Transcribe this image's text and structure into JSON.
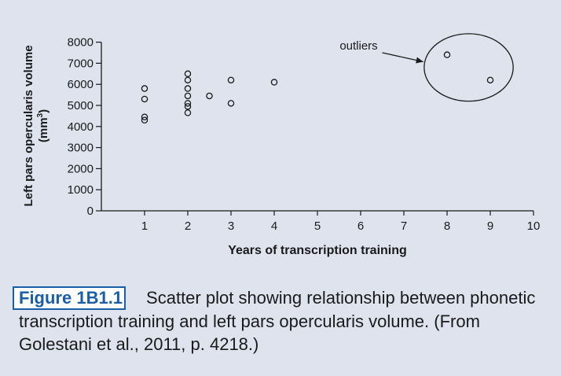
{
  "chart_data": {
    "type": "scatter",
    "title": "",
    "xlabel": "Years of transcription training",
    "ylabel_line1": "Left pars opercularis volume",
    "ylabel_line2_base": "(mm",
    "ylabel_line2_sup": "3",
    "ylabel_line2_end": ")",
    "xlim": [
      0,
      10
    ],
    "ylim": [
      0,
      8000
    ],
    "x_ticks": [
      "1",
      "2",
      "3",
      "4",
      "5",
      "6",
      "7",
      "8",
      "9",
      "10"
    ],
    "y_ticks": [
      "0",
      "1000",
      "2000",
      "3000",
      "4000",
      "5000",
      "6000",
      "7000",
      "8000"
    ],
    "grid": false,
    "points": [
      {
        "x": 1,
        "y": 5800
      },
      {
        "x": 1,
        "y": 5300
      },
      {
        "x": 1,
        "y": 4450
      },
      {
        "x": 1,
        "y": 4300
      },
      {
        "x": 2,
        "y": 6500
      },
      {
        "x": 2,
        "y": 6200
      },
      {
        "x": 2,
        "y": 5800
      },
      {
        "x": 2,
        "y": 5450
      },
      {
        "x": 2,
        "y": 5100
      },
      {
        "x": 2,
        "y": 4950
      },
      {
        "x": 2,
        "y": 4650
      },
      {
        "x": 2.5,
        "y": 5450
      },
      {
        "x": 3,
        "y": 6200
      },
      {
        "x": 3,
        "y": 5100
      },
      {
        "x": 4,
        "y": 6100
      },
      {
        "x": 8,
        "y": 7400
      },
      {
        "x": 9,
        "y": 6200
      }
    ],
    "annotation": {
      "text": "outliers"
    },
    "annotation_ellipse": {
      "cx": 8.5,
      "cy": 6800,
      "rx": 1.03,
      "ry": 1600
    },
    "annotation_arrow": {
      "from": [
        6.5,
        7500
      ],
      "to": [
        7.45,
        7070
      ]
    }
  },
  "caption": {
    "label": "Figure 1B1.1",
    "text": "Scatter plot showing relationship between phonetic transcription training and left pars opercularis volume. (From Golestani et al., 2011, p. 4218.)"
  },
  "colors": {
    "background": "#dfe3ee",
    "ink": "#1a1a1a",
    "caption_accent": "#1b5ea8"
  }
}
